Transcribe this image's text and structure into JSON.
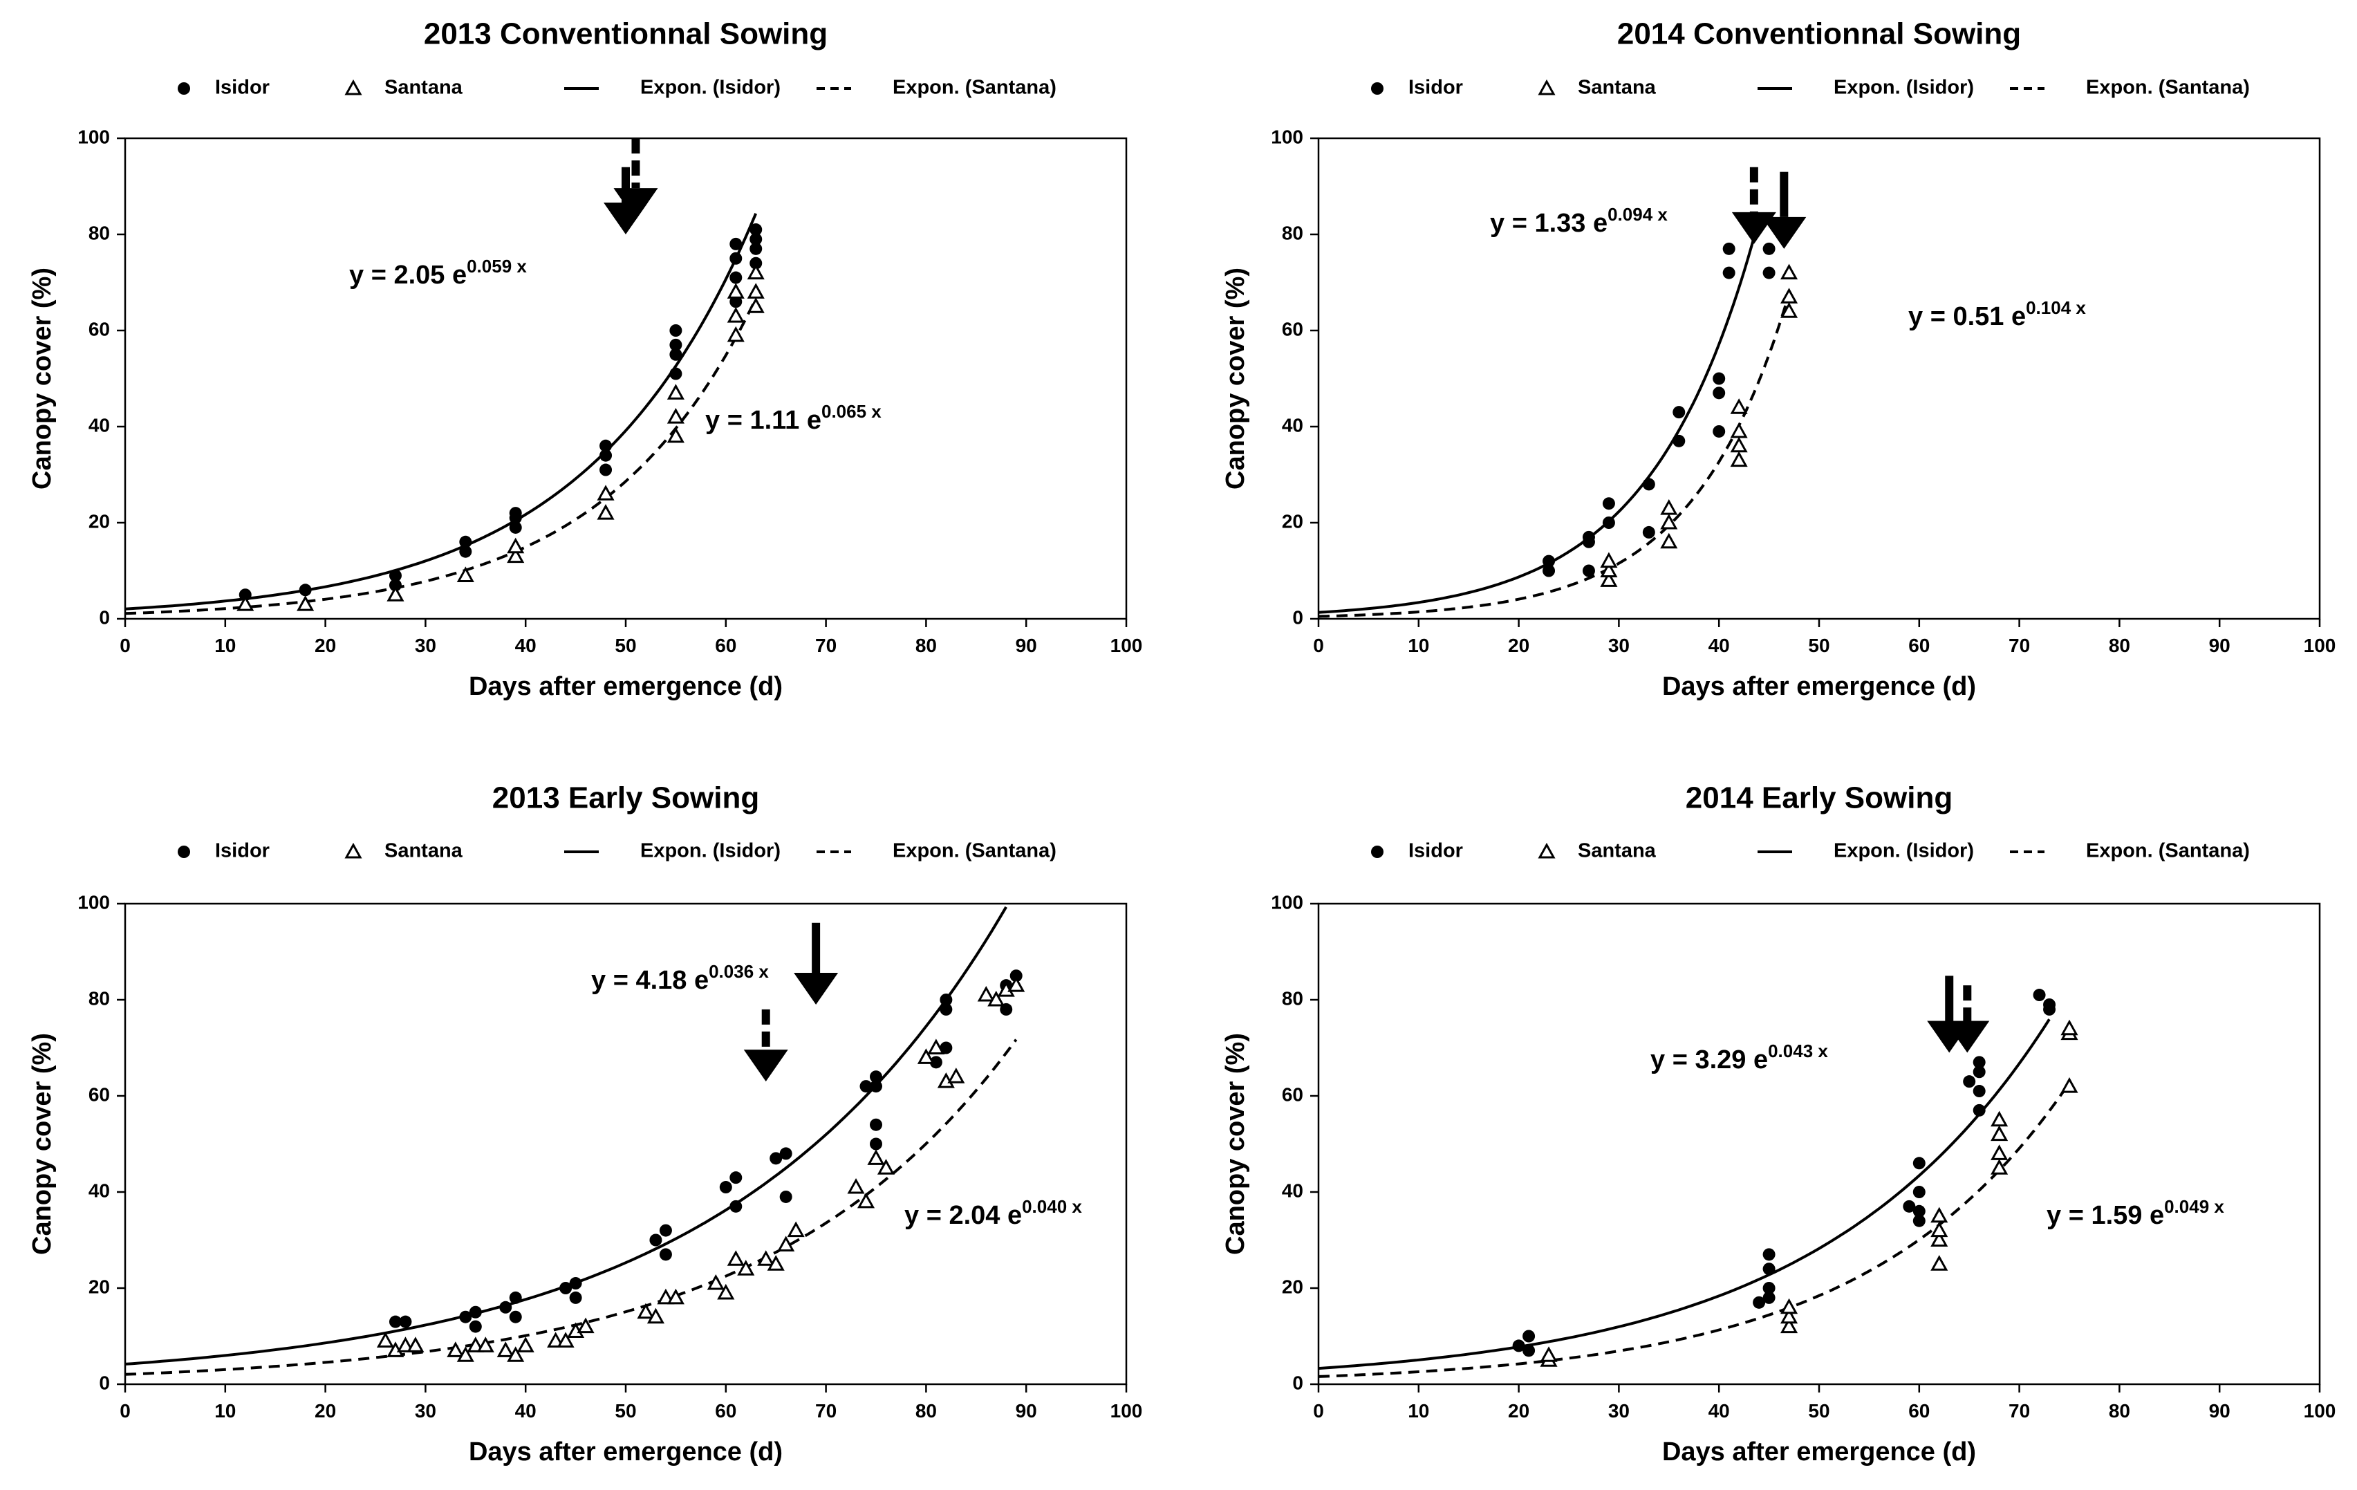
{
  "chart_data": [
    {
      "type": "scatter",
      "title": "2013 Conventionnal Sowing",
      "xlabel": "Days after emergence (d)",
      "ylabel": "Canopy cover (%)",
      "xlim": [
        0,
        100
      ],
      "ylim": [
        0,
        100
      ],
      "xticks": [
        "0",
        "10",
        "20",
        "30",
        "40",
        "50",
        "60",
        "70",
        "80",
        "90",
        "100"
      ],
      "yticks": [
        "0",
        "20",
        "40",
        "60",
        "80",
        "100"
      ],
      "legend": {
        "placement": "top",
        "entries": [
          "Isidor",
          "Santana",
          "Expon. (Isidor)",
          "Expon. (Santana)"
        ]
      },
      "series": [
        {
          "name": "Isidor",
          "marker": "circle",
          "x": [
            12,
            18,
            27,
            27,
            34,
            34,
            39,
            39,
            39,
            48,
            48,
            48,
            55,
            55,
            55,
            55,
            61,
            61,
            61,
            61,
            63,
            63,
            63,
            63
          ],
          "y": [
            5,
            6,
            7,
            9,
            14,
            16,
            19,
            21,
            22,
            31,
            34,
            36,
            51,
            55,
            57,
            60,
            66,
            71,
            75,
            78,
            74,
            77,
            79,
            81
          ]
        },
        {
          "name": "Santana",
          "marker": "triangle",
          "x": [
            12,
            18,
            27,
            34,
            39,
            39,
            48,
            48,
            55,
            55,
            55,
            61,
            61,
            61,
            63,
            63,
            63
          ],
          "y": [
            3,
            3,
            5,
            9,
            13,
            15,
            22,
            26,
            38,
            42,
            47,
            59,
            63,
            68,
            65,
            68,
            72
          ]
        }
      ],
      "fits": [
        {
          "name": "Expon. (Isidor)",
          "style": "solid",
          "a": 2.05,
          "b": 0.059,
          "x_range": [
            0,
            63
          ]
        },
        {
          "name": "Expon. (Santana)",
          "style": "dashed",
          "a": 1.11,
          "b": 0.065,
          "x_range": [
            0,
            63
          ]
        }
      ],
      "equations": [
        {
          "base": "y = 2.05 e",
          "exp": "0.059 x"
        },
        {
          "base": "y = 1.11 e",
          "exp": "0.065 x"
        }
      ],
      "arrows": [
        {
          "style": "solid",
          "x": 50,
          "y_top": 94,
          "y_tip": 80
        },
        {
          "style": "dashed",
          "x": 51,
          "y_top": 100,
          "y_tip": 83
        }
      ]
    },
    {
      "type": "scatter",
      "title": "2014 Conventionnal Sowing",
      "xlabel": "Days after emergence (d)",
      "ylabel": "Canopy cover (%)",
      "xlim": [
        0,
        100
      ],
      "ylim": [
        0,
        100
      ],
      "xticks": [
        "0",
        "10",
        "20",
        "30",
        "40",
        "50",
        "60",
        "70",
        "80",
        "90",
        "100"
      ],
      "yticks": [
        "0",
        "20",
        "40",
        "60",
        "80",
        "100"
      ],
      "legend": {
        "placement": "top",
        "entries": [
          "Isidor",
          "Santana",
          "Expon. (Isidor)",
          "Expon. (Santana)"
        ]
      },
      "series": [
        {
          "name": "Isidor",
          "marker": "circle",
          "x": [
            23,
            23,
            27,
            27,
            27,
            29,
            29,
            33,
            33,
            36,
            36,
            40,
            40,
            40,
            41,
            41,
            45,
            45
          ],
          "y": [
            10,
            12,
            10,
            16,
            17,
            20,
            24,
            18,
            28,
            37,
            43,
            39,
            47,
            50,
            72,
            77,
            72,
            77
          ]
        },
        {
          "name": "Santana",
          "marker": "triangle",
          "x": [
            29,
            29,
            29,
            35,
            35,
            35,
            42,
            42,
            42,
            42,
            47,
            47,
            47
          ],
          "y": [
            8,
            10,
            12,
            16,
            20,
            23,
            33,
            36,
            39,
            44,
            64,
            67,
            72
          ]
        }
      ],
      "fits": [
        {
          "name": "Expon. (Isidor)",
          "style": "solid",
          "a": 1.33,
          "b": 0.094,
          "x_range": [
            0,
            44
          ]
        },
        {
          "name": "Expon. (Santana)",
          "style": "dashed",
          "a": 0.51,
          "b": 0.104,
          "x_range": [
            0,
            47
          ]
        }
      ],
      "equations": [
        {
          "base": "y = 1.33 e",
          "exp": "0.094 x"
        },
        {
          "base": "y = 0.51 e",
          "exp": "0.104 x"
        }
      ],
      "arrows": [
        {
          "style": "dashed",
          "x": 43.5,
          "y_top": 94,
          "y_tip": 78
        },
        {
          "style": "solid",
          "x": 46.5,
          "y_top": 93,
          "y_tip": 77
        }
      ]
    },
    {
      "type": "scatter",
      "title": "2013 Early Sowing",
      "xlabel": "Days after emergence (d)",
      "ylabel": "Canopy cover (%)",
      "xlim": [
        0,
        100
      ],
      "ylim": [
        0,
        100
      ],
      "xticks": [
        "0",
        "10",
        "20",
        "30",
        "40",
        "50",
        "60",
        "70",
        "80",
        "90",
        "100"
      ],
      "yticks": [
        "0",
        "20",
        "40",
        "60",
        "80",
        "100"
      ],
      "legend": {
        "placement": "top",
        "entries": [
          "Isidor",
          "Santana",
          "Expon. (Isidor)",
          "Expon. (Santana)"
        ]
      },
      "series": [
        {
          "name": "Isidor",
          "marker": "circle",
          "x": [
            27,
            28,
            34,
            35,
            35,
            38,
            39,
            39,
            44,
            45,
            45,
            53,
            54,
            54,
            60,
            61,
            61,
            65,
            66,
            66,
            74,
            75,
            75,
            75,
            75,
            81,
            82,
            82,
            82,
            88,
            88,
            89
          ],
          "y": [
            13,
            13,
            14,
            12,
            15,
            16,
            14,
            18,
            20,
            18,
            21,
            30,
            27,
            32,
            41,
            37,
            43,
            47,
            39,
            48,
            62,
            64,
            54,
            50,
            62,
            67,
            70,
            78,
            80,
            78,
            83,
            85
          ]
        },
        {
          "name": "Santana",
          "marker": "triangle",
          "x": [
            26,
            27,
            28,
            29,
            33,
            34,
            35,
            36,
            38,
            39,
            40,
            43,
            44,
            45,
            46,
            52,
            53,
            54,
            55,
            59,
            60,
            61,
            62,
            64,
            65,
            66,
            67,
            73,
            74,
            75,
            76,
            80,
            81,
            82,
            83,
            86,
            87,
            88,
            89
          ],
          "y": [
            9,
            7,
            8,
            8,
            7,
            6,
            8,
            8,
            7,
            6,
            8,
            9,
            9,
            11,
            12,
            15,
            14,
            18,
            18,
            21,
            19,
            26,
            24,
            26,
            25,
            29,
            32,
            41,
            38,
            47,
            45,
            68,
            70,
            63,
            64,
            81,
            80,
            82,
            83
          ]
        }
      ],
      "fits": [
        {
          "name": "Expon. (Isidor)",
          "style": "solid",
          "a": 4.18,
          "b": 0.036,
          "x_range": [
            0,
            88
          ]
        },
        {
          "name": "Expon. (Santana)",
          "style": "dashed",
          "a": 2.04,
          "b": 0.04,
          "x_range": [
            0,
            89
          ]
        }
      ],
      "equations": [
        {
          "base": "y = 4.18 e",
          "exp": "0.036 x"
        },
        {
          "base": "y = 2.04 e",
          "exp": "0.040 x"
        }
      ],
      "arrows": [
        {
          "style": "solid",
          "x": 69,
          "y_top": 96,
          "y_tip": 79
        },
        {
          "style": "dashed",
          "x": 64,
          "y_top": 78,
          "y_tip": 63
        }
      ]
    },
    {
      "type": "scatter",
      "title": "2014 Early Sowing",
      "xlabel": "Days after emergence (d)",
      "ylabel": "Canopy cover (%)",
      "xlim": [
        0,
        100
      ],
      "ylim": [
        0,
        100
      ],
      "xticks": [
        "0",
        "10",
        "20",
        "30",
        "40",
        "50",
        "60",
        "70",
        "80",
        "90",
        "100"
      ],
      "yticks": [
        "0",
        "20",
        "40",
        "60",
        "80",
        "100"
      ],
      "legend": {
        "placement": "top",
        "entries": [
          "Isidor",
          "Santana",
          "Expon. (Isidor)",
          "Expon. (Santana)"
        ]
      },
      "series": [
        {
          "name": "Isidor",
          "marker": "circle",
          "x": [
            20,
            21,
            21,
            44,
            45,
            45,
            45,
            45,
            59,
            60,
            60,
            60,
            60,
            65,
            66,
            66,
            66,
            66,
            72,
            73,
            73
          ],
          "y": [
            8,
            7,
            10,
            17,
            18,
            20,
            24,
            27,
            37,
            34,
            36,
            40,
            46,
            63,
            57,
            61,
            65,
            67,
            81,
            79,
            78
          ]
        },
        {
          "name": "Santana",
          "marker": "triangle",
          "x": [
            23,
            23,
            47,
            47,
            47,
            62,
            62,
            62,
            62,
            68,
            68,
            68,
            68,
            75,
            75,
            75
          ],
          "y": [
            5,
            6,
            12,
            14,
            16,
            25,
            30,
            32,
            35,
            45,
            48,
            52,
            55,
            62,
            73,
            74
          ]
        }
      ],
      "fits": [
        {
          "name": "Expon. (Isidor)",
          "style": "solid",
          "a": 3.29,
          "b": 0.043,
          "x_range": [
            0,
            73
          ]
        },
        {
          "name": "Expon. (Santana)",
          "style": "dashed",
          "a": 1.59,
          "b": 0.049,
          "x_range": [
            0,
            75
          ]
        }
      ],
      "equations": [
        {
          "base": "y = 3.29 e",
          "exp": "0.043 x"
        },
        {
          "base": "y = 1.59 e",
          "exp": "0.049 x"
        }
      ],
      "arrows": [
        {
          "style": "solid",
          "x": 63,
          "y_top": 85,
          "y_tip": 69
        },
        {
          "style": "dashed",
          "x": 64.8,
          "y_top": 83,
          "y_tip": 69
        }
      ]
    }
  ]
}
